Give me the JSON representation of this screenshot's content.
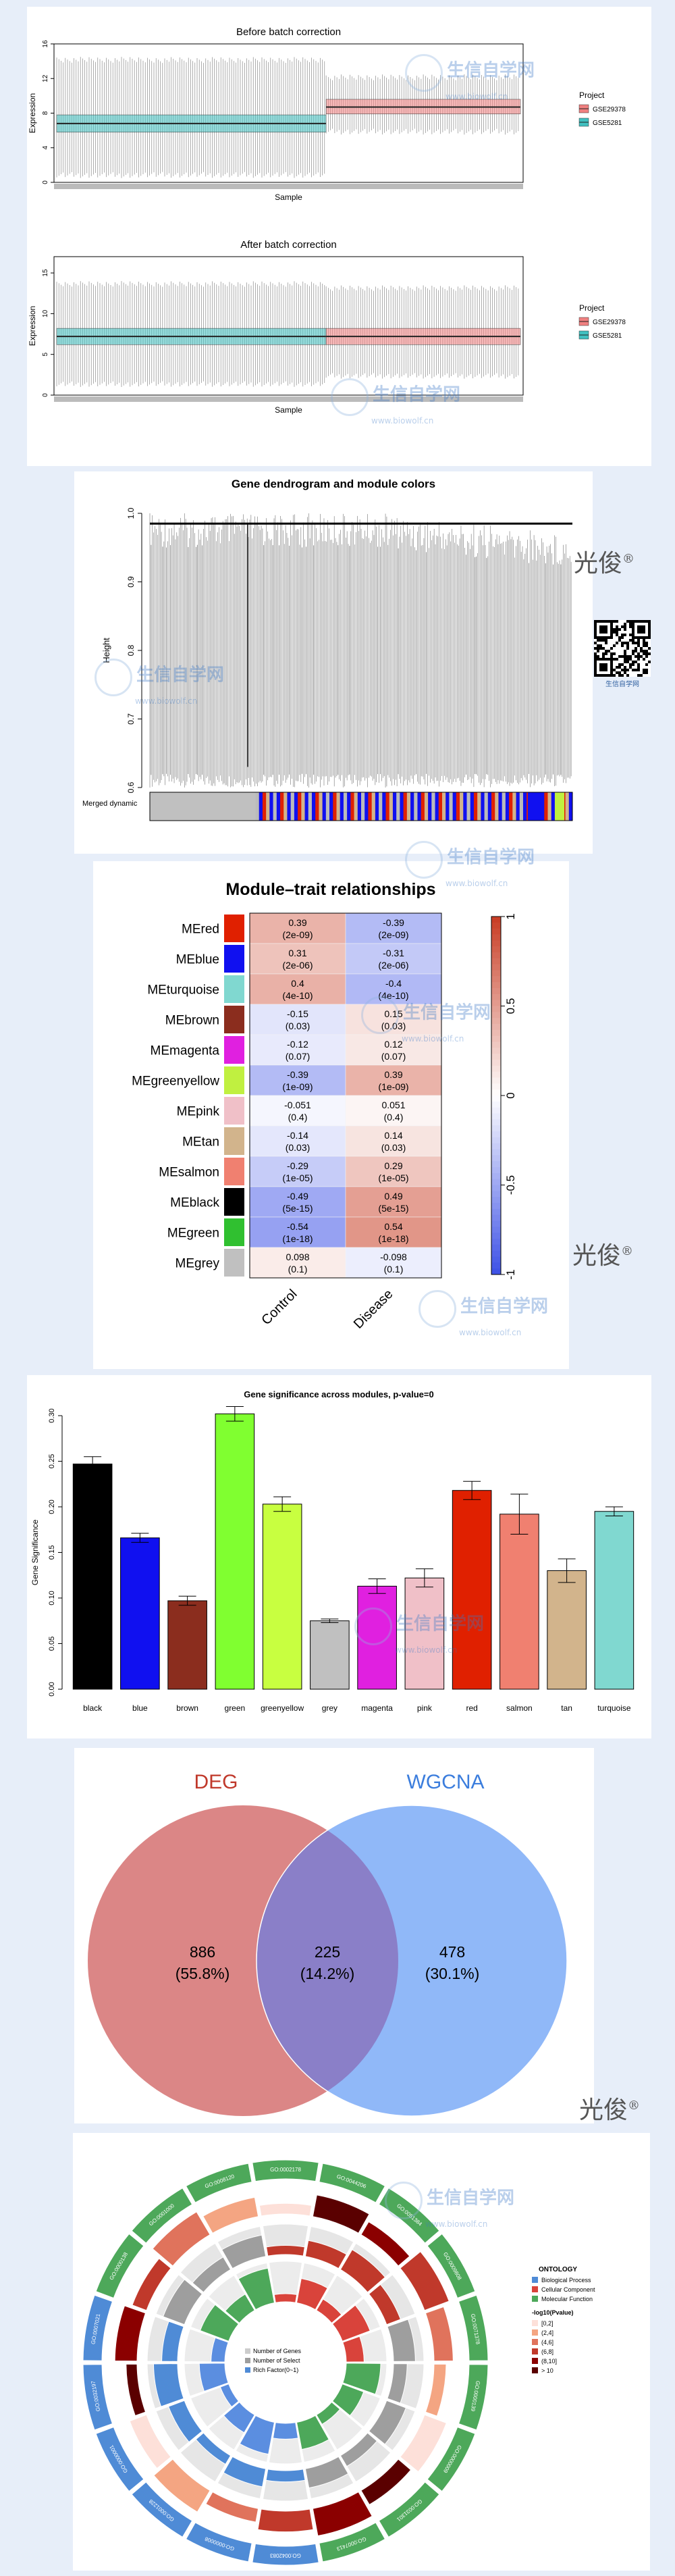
{
  "batch": {
    "before_title": "Before batch correction",
    "after_title": "After batch correction",
    "xlabel": "Sample",
    "ylabel": "Expression",
    "legend_title": "Project",
    "legend_items": [
      {
        "label": "GSE29378",
        "color": "#f08080"
      },
      {
        "label": "GSE5281",
        "color": "#40c0c0"
      }
    ],
    "before_ticks": [
      "0",
      "4",
      "8",
      "12",
      "16"
    ],
    "after_ticks": [
      "0",
      "5",
      "10",
      "15"
    ]
  },
  "dendrogram": {
    "title": "Gene dendrogram and module colors",
    "ylabel": "Height",
    "ticks": [
      "1.0",
      "0.9",
      "0.8",
      "0.7",
      "0.6"
    ],
    "merged_label": "Merged dynamic",
    "qr_caption": "生信自学网"
  },
  "module_trait": {
    "title": "Module–trait relationships",
    "traits": [
      "Control",
      "Disease"
    ],
    "scale_ticks": [
      "1",
      "0.5",
      "0",
      "-0.5",
      "-1"
    ]
  },
  "venn": {
    "left_label": "DEG",
    "right_label": "WGCNA",
    "left_count": "886",
    "left_pct": "(55.8%)",
    "mid_count": "225",
    "mid_pct": "(14.2%)",
    "right_count": "478",
    "right_pct": "(30.1%)",
    "left_color": "#d98080",
    "right_color": "#8ab4f8"
  },
  "go": {
    "ontology_title": "ONTOLOGY",
    "ontology_items": [
      {
        "label": "Biological Process",
        "color": "#4f8bd6"
      },
      {
        "label": "Cellular Component",
        "color": "#d9433b"
      },
      {
        "label": "Molecular Function",
        "color": "#4da85a"
      }
    ],
    "pvalue_title": "-log10(Pvalue)",
    "pvalue_items": [
      "[0,2]",
      "(2,4]",
      "(4,6]",
      "(6,8]",
      "(8,10]",
      "> 10"
    ],
    "center_legend": [
      "Number of Genes",
      "Number of Select",
      "Rich Factor(0~1)"
    ],
    "term_labels": [
      "GO:0002178",
      "GO:0044206",
      "GO:0051384",
      "GO:0009808",
      "GO:0071378",
      "GO:0000139",
      "GO:0000009",
      "GO:0031301",
      "GO:0007413",
      "GO:0042083",
      "GO:0000008",
      "GO:0001228",
      "GO:0000001",
      "GO:0032197",
      "GO:0007021",
      "GO:0000138",
      "GO:0001000",
      "GO:0008120"
    ]
  },
  "brand": {
    "text": "光俊",
    "mark": "®"
  },
  "watermark": {
    "main": "生信自学网",
    "sub": "www.biowolf.cn"
  },
  "chart_data": [
    {
      "type": "box",
      "title": "Before batch correction",
      "xlabel": "Sample",
      "ylabel": "Expression",
      "ylim": [
        0,
        16
      ],
      "series": [
        {
          "name": "GSE5281",
          "median": 6.8,
          "q1": 5.8,
          "q3": 7.8,
          "min": 0.5,
          "max": 14.5
        },
        {
          "name": "GSE29378",
          "median": 8.7,
          "q1": 7.9,
          "q3": 9.6,
          "min": 5.5,
          "max": 12.5
        }
      ]
    },
    {
      "type": "box",
      "title": "After batch correction",
      "xlabel": "Sample",
      "ylabel": "Expression",
      "ylim": [
        0,
        17
      ],
      "series": [
        {
          "name": "GSE5281",
          "median": 7.2,
          "q1": 6.2,
          "q3": 8.2,
          "min": 1.0,
          "max": 14.0
        },
        {
          "name": "GSE29378",
          "median": 7.2,
          "q1": 6.2,
          "q3": 8.2,
          "min": 2.0,
          "max": 13.5
        }
      ]
    },
    {
      "type": "heatmap",
      "title": "Module–trait relationships",
      "columns": [
        "Control",
        "Disease"
      ],
      "rows": [
        {
          "module": "MEred",
          "color": "#e02000",
          "values": [
            0.39,
            -0.39
          ],
          "pvals": [
            "(2e-09)",
            "(2e-09)"
          ]
        },
        {
          "module": "MEblue",
          "color": "#1010f0",
          "values": [
            0.31,
            -0.31
          ],
          "pvals": [
            "(2e-06)",
            "(2e-06)"
          ]
        },
        {
          "module": "MEturquoise",
          "color": "#80d8d0",
          "values": [
            0.4,
            -0.4
          ],
          "pvals": [
            "(4e-10)",
            "(4e-10)"
          ]
        },
        {
          "module": "MEbrown",
          "color": "#8b2d1e",
          "values": [
            -0.15,
            0.15
          ],
          "pvals": [
            "(0.03)",
            "(0.03)"
          ]
        },
        {
          "module": "MEmagenta",
          "color": "#e020e0",
          "values": [
            -0.12,
            0.12
          ],
          "pvals": [
            "(0.07)",
            "(0.07)"
          ]
        },
        {
          "module": "MEgreenyellow",
          "color": "#c0f040",
          "values": [
            -0.39,
            0.39
          ],
          "pvals": [
            "(1e-09)",
            "(1e-09)"
          ]
        },
        {
          "module": "MEpink",
          "color": "#f0c0c8",
          "values": [
            -0.051,
            0.051
          ],
          "pvals": [
            "(0.4)",
            "(0.4)"
          ]
        },
        {
          "module": "MEtan",
          "color": "#d2b48c",
          "values": [
            -0.14,
            0.14
          ],
          "pvals": [
            "(0.03)",
            "(0.03)"
          ]
        },
        {
          "module": "MEsalmon",
          "color": "#f08070",
          "values": [
            -0.29,
            0.29
          ],
          "pvals": [
            "(1e-05)",
            "(1e-05)"
          ]
        },
        {
          "module": "MEblack",
          "color": "#000000",
          "values": [
            -0.49,
            0.49
          ],
          "pvals": [
            "(5e-15)",
            "(5e-15)"
          ]
        },
        {
          "module": "MEgreen",
          "color": "#30c030",
          "values": [
            -0.54,
            0.54
          ],
          "pvals": [
            "(1e-18)",
            "(1e-18)"
          ]
        },
        {
          "module": "MEgrey",
          "color": "#c0c0c0",
          "values": [
            0.098,
            -0.098
          ],
          "pvals": [
            "(0.1)",
            "(0.1)"
          ]
        }
      ],
      "scale": [
        -1,
        1
      ]
    },
    {
      "type": "bar",
      "title": "Gene significance across modules, p-value=0",
      "ylabel": "Gene Significance",
      "ylim": [
        0,
        0.3
      ],
      "yticks": [
        "0.00",
        "0.05",
        "0.10",
        "0.15",
        "0.20",
        "0.25",
        "0.30"
      ],
      "categories": [
        "black",
        "blue",
        "brown",
        "green",
        "greenyellow",
        "grey",
        "magenta",
        "pink",
        "red",
        "salmon",
        "tan",
        "turquoise"
      ],
      "values": [
        0.247,
        0.166,
        0.097,
        0.302,
        0.203,
        0.075,
        0.113,
        0.122,
        0.218,
        0.192,
        0.13,
        0.195
      ],
      "errors": [
        0.008,
        0.005,
        0.005,
        0.008,
        0.008,
        0.002,
        0.008,
        0.01,
        0.01,
        0.022,
        0.013,
        0.005
      ],
      "colors": [
        "#000000",
        "#1010f0",
        "#8b2d1e",
        "#80ff30",
        "#c8ff40",
        "#c0c0c0",
        "#e020e0",
        "#f0c0c8",
        "#e02000",
        "#f08070",
        "#d2b48c",
        "#80d8d0"
      ]
    },
    {
      "type": "venn",
      "sets": [
        "DEG",
        "WGCNA"
      ],
      "values": {
        "DEG_only": 886,
        "both": 225,
        "WGCNA_only": 478
      },
      "percent": {
        "DEG_only": 55.8,
        "both": 14.2,
        "WGCNA_only": 30.1
      }
    }
  ]
}
